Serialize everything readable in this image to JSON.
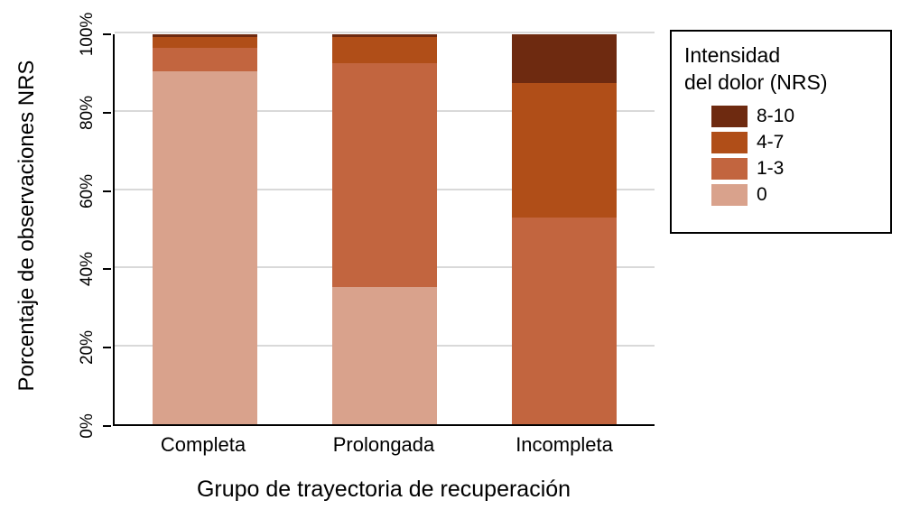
{
  "chart_data": {
    "type": "bar",
    "subtype": "stacked_percent",
    "categories": [
      "Completa",
      "Prolongada",
      "Incompleta"
    ],
    "series": [
      {
        "name": "0",
        "color": "#d9a28c",
        "values": [
          90.5,
          35.3,
          0
        ]
      },
      {
        "name": "1-3",
        "color": "#c2653f",
        "values": [
          6.0,
          57.2,
          53.0
        ]
      },
      {
        "name": "4-7",
        "color": "#b04e18",
        "values": [
          2.8,
          6.8,
          34.5
        ]
      },
      {
        "name": "8-10",
        "color": "#6e2a10",
        "values": [
          0.7,
          0.7,
          12.5
        ]
      }
    ],
    "ylabel": "Porcentaje de observaciones NRS",
    "xlabel": "Grupo de trayectoria de recuperación",
    "yticks": [
      "0%",
      "20%",
      "40%",
      "60%",
      "80%",
      "100%"
    ],
    "ylim": [
      0,
      100
    ],
    "grid": true,
    "legend": {
      "position": "right",
      "title_line1": "Intensidad",
      "title_line2": "del dolor (NRS)",
      "order": [
        "8-10",
        "4-7",
        "1-3",
        "0"
      ]
    },
    "colors": {
      "grid": "#d9d9d9",
      "axis": "#000000",
      "background": "#ffffff"
    }
  }
}
